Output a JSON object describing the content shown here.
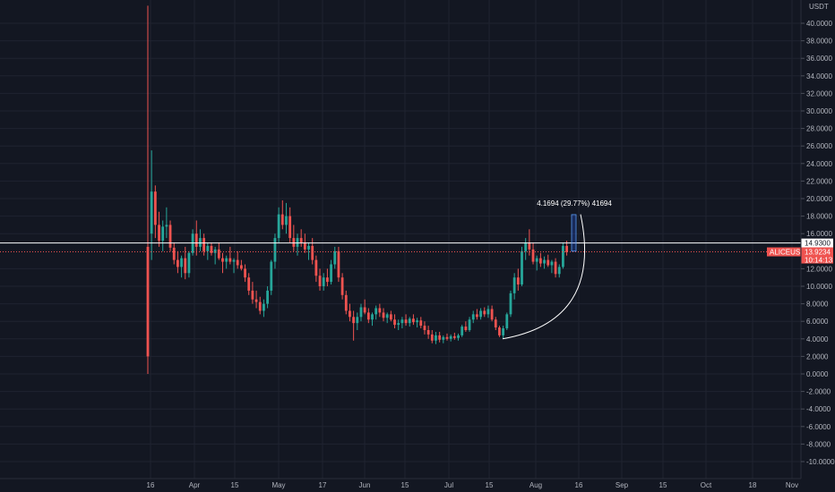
{
  "chart_data": {
    "type": "candlestick",
    "symbol": "ALICEUSDT",
    "currency": "USDT",
    "ylim": [
      -11,
      43
    ],
    "y_ticks": [
      -10,
      -8,
      -6,
      -4,
      -2,
      0,
      2,
      4,
      6,
      8,
      10,
      12,
      16,
      18,
      20,
      22,
      24,
      26,
      28,
      30,
      32,
      34,
      36,
      38,
      40
    ],
    "y_tick_labels": [
      "-10.0000",
      "-8.0000",
      "-6.0000",
      "-4.0000",
      "-2.0000",
      "0.0000",
      "2.0000",
      "4.0000",
      "6.0000",
      "8.0000",
      "10.0000",
      "12.0000",
      "16.0000",
      "18.0000",
      "20.0000",
      "22.0000",
      "24.0000",
      "26.0000",
      "28.0000",
      "30.0000",
      "32.0000",
      "34.0000",
      "36.0000",
      "38.0000",
      "40.0000"
    ],
    "x_labels": [
      "16",
      "Apr",
      "15",
      "May",
      "17",
      "Jun",
      "15",
      "Jul",
      "15",
      "Aug",
      "16",
      "Sep",
      "15",
      "Oct",
      "18",
      "Nov"
    ],
    "horizontal_line_value": 14.93,
    "horizontal_line_label": "14.9300",
    "last_price": 13.9234,
    "last_price_label": "13.9234",
    "countdown": "10:14:13",
    "measure_label": "4.1694 (29.77%) 41694",
    "measure_range": [
      14.0,
      18.17
    ],
    "curve_start_value": 4.0,
    "curve_end_value": 18.2,
    "colors": {
      "up": "#26a69a",
      "down": "#ef5350",
      "bg": "#131722",
      "grid": "#1f2330",
      "line": "#ffffff"
    },
    "candles": [
      {
        "o": 14.5,
        "h": 42,
        "l": 0,
        "c": 2.0
      },
      {
        "o": 16.0,
        "h": 25.5,
        "l": 13.0,
        "c": 20.8
      },
      {
        "o": 20.8,
        "h": 21.5,
        "l": 15.5,
        "c": 17.0
      },
      {
        "o": 17.0,
        "h": 18.5,
        "l": 14.5,
        "c": 15.2
      },
      {
        "o": 15.2,
        "h": 17.5,
        "l": 14.0,
        "c": 16.8
      },
      {
        "o": 16.8,
        "h": 19.0,
        "l": 15.5,
        "c": 17.0
      },
      {
        "o": 17.0,
        "h": 17.5,
        "l": 14.0,
        "c": 14.4
      },
      {
        "o": 14.4,
        "h": 15.0,
        "l": 12.5,
        "c": 13.0
      },
      {
        "o": 13.0,
        "h": 14.0,
        "l": 11.5,
        "c": 12.2
      },
      {
        "o": 12.2,
        "h": 13.5,
        "l": 11.0,
        "c": 13.2
      },
      {
        "o": 13.2,
        "h": 14.5,
        "l": 10.8,
        "c": 11.5
      },
      {
        "o": 11.5,
        "h": 14.0,
        "l": 11.0,
        "c": 13.8
      },
      {
        "o": 13.8,
        "h": 16.5,
        "l": 13.5,
        "c": 16.0
      },
      {
        "o": 16.0,
        "h": 17.5,
        "l": 13.5,
        "c": 14.5
      },
      {
        "o": 14.5,
        "h": 16.5,
        "l": 14.0,
        "c": 15.5
      },
      {
        "o": 15.5,
        "h": 16.0,
        "l": 13.5,
        "c": 14.0
      },
      {
        "o": 14.0,
        "h": 15.0,
        "l": 13.0,
        "c": 14.6
      },
      {
        "o": 14.6,
        "h": 15.0,
        "l": 13.5,
        "c": 13.8
      },
      {
        "o": 13.8,
        "h": 14.5,
        "l": 12.5,
        "c": 14.2
      },
      {
        "o": 14.2,
        "h": 15.0,
        "l": 13.0,
        "c": 13.2
      },
      {
        "o": 13.2,
        "h": 13.8,
        "l": 11.5,
        "c": 12.8
      },
      {
        "o": 12.8,
        "h": 13.5,
        "l": 12.0,
        "c": 13.2
      },
      {
        "o": 13.2,
        "h": 14.5,
        "l": 12.5,
        "c": 12.8
      },
      {
        "o": 12.8,
        "h": 13.2,
        "l": 11.5,
        "c": 13.0
      },
      {
        "o": 13.0,
        "h": 14.0,
        "l": 12.0,
        "c": 12.4
      },
      {
        "o": 12.4,
        "h": 13.0,
        "l": 11.8,
        "c": 12.0
      },
      {
        "o": 12.0,
        "h": 12.5,
        "l": 10.5,
        "c": 11.0
      },
      {
        "o": 11.0,
        "h": 11.5,
        "l": 9.0,
        "c": 9.5
      },
      {
        "o": 9.5,
        "h": 10.5,
        "l": 8.0,
        "c": 8.5
      },
      {
        "o": 8.5,
        "h": 9.5,
        "l": 7.5,
        "c": 8.2
      },
      {
        "o": 8.2,
        "h": 8.8,
        "l": 6.8,
        "c": 7.2
      },
      {
        "o": 7.2,
        "h": 8.5,
        "l": 6.5,
        "c": 8.0
      },
      {
        "o": 8.0,
        "h": 10.0,
        "l": 7.5,
        "c": 9.5
      },
      {
        "o": 9.5,
        "h": 13.0,
        "l": 9.0,
        "c": 12.8
      },
      {
        "o": 12.8,
        "h": 16.0,
        "l": 12.0,
        "c": 15.5
      },
      {
        "o": 15.5,
        "h": 19.0,
        "l": 15.0,
        "c": 18.2
      },
      {
        "o": 18.2,
        "h": 19.8,
        "l": 16.5,
        "c": 17.0
      },
      {
        "o": 17.0,
        "h": 19.5,
        "l": 16.0,
        "c": 18.0
      },
      {
        "o": 18.0,
        "h": 19.0,
        "l": 15.0,
        "c": 15.5
      },
      {
        "o": 15.5,
        "h": 17.0,
        "l": 14.0,
        "c": 14.5
      },
      {
        "o": 14.5,
        "h": 16.0,
        "l": 13.5,
        "c": 15.5
      },
      {
        "o": 15.5,
        "h": 16.5,
        "l": 14.5,
        "c": 15.0
      },
      {
        "o": 15.0,
        "h": 16.0,
        "l": 13.8,
        "c": 14.2
      },
      {
        "o": 14.2,
        "h": 15.0,
        "l": 13.0,
        "c": 14.6
      },
      {
        "o": 14.6,
        "h": 15.5,
        "l": 12.5,
        "c": 13.0
      },
      {
        "o": 13.0,
        "h": 13.5,
        "l": 10.5,
        "c": 11.2
      },
      {
        "o": 11.2,
        "h": 12.0,
        "l": 9.5,
        "c": 10.0
      },
      {
        "o": 10.0,
        "h": 11.5,
        "l": 9.5,
        "c": 11.0
      },
      {
        "o": 11.0,
        "h": 12.0,
        "l": 10.0,
        "c": 10.5
      },
      {
        "o": 10.5,
        "h": 13.0,
        "l": 10.2,
        "c": 12.5
      },
      {
        "o": 12.5,
        "h": 14.5,
        "l": 12.0,
        "c": 14.0
      },
      {
        "o": 14.0,
        "h": 14.5,
        "l": 10.5,
        "c": 11.0
      },
      {
        "o": 11.0,
        "h": 11.5,
        "l": 8.5,
        "c": 9.0
      },
      {
        "o": 9.0,
        "h": 9.5,
        "l": 6.8,
        "c": 7.2
      },
      {
        "o": 7.2,
        "h": 8.0,
        "l": 6.0,
        "c": 6.5
      },
      {
        "o": 6.5,
        "h": 7.2,
        "l": 3.8,
        "c": 5.8
      },
      {
        "o": 5.8,
        "h": 7.0,
        "l": 5.0,
        "c": 6.5
      },
      {
        "o": 6.5,
        "h": 8.0,
        "l": 6.0,
        "c": 7.6
      },
      {
        "o": 7.6,
        "h": 8.5,
        "l": 6.8,
        "c": 7.0
      },
      {
        "o": 7.0,
        "h": 7.5,
        "l": 5.8,
        "c": 6.2
      },
      {
        "o": 6.2,
        "h": 7.0,
        "l": 5.5,
        "c": 6.8
      },
      {
        "o": 6.8,
        "h": 7.8,
        "l": 6.2,
        "c": 7.5
      },
      {
        "o": 7.5,
        "h": 8.0,
        "l": 6.5,
        "c": 7.0
      },
      {
        "o": 7.0,
        "h": 7.5,
        "l": 6.0,
        "c": 6.4
      },
      {
        "o": 6.4,
        "h": 7.0,
        "l": 5.8,
        "c": 6.8
      },
      {
        "o": 6.8,
        "h": 7.2,
        "l": 6.0,
        "c": 6.2
      },
      {
        "o": 6.2,
        "h": 6.8,
        "l": 5.2,
        "c": 5.6
      },
      {
        "o": 5.6,
        "h": 6.2,
        "l": 5.0,
        "c": 5.8
      },
      {
        "o": 5.8,
        "h": 6.5,
        "l": 5.2,
        "c": 6.2
      },
      {
        "o": 6.2,
        "h": 6.8,
        "l": 5.5,
        "c": 5.8
      },
      {
        "o": 5.8,
        "h": 6.5,
        "l": 5.4,
        "c": 6.3
      },
      {
        "o": 6.3,
        "h": 6.8,
        "l": 5.6,
        "c": 5.9
      },
      {
        "o": 5.9,
        "h": 6.4,
        "l": 5.3,
        "c": 6.1
      },
      {
        "o": 6.1,
        "h": 6.5,
        "l": 5.2,
        "c": 5.5
      },
      {
        "o": 5.5,
        "h": 6.0,
        "l": 4.5,
        "c": 5.0
      },
      {
        "o": 5.0,
        "h": 5.5,
        "l": 4.0,
        "c": 4.5
      },
      {
        "o": 4.5,
        "h": 5.0,
        "l": 3.5,
        "c": 3.8
      },
      {
        "o": 3.8,
        "h": 4.8,
        "l": 3.4,
        "c": 4.4
      },
      {
        "o": 4.4,
        "h": 4.8,
        "l": 3.6,
        "c": 3.9
      },
      {
        "o": 3.9,
        "h": 4.4,
        "l": 3.5,
        "c": 4.2
      },
      {
        "o": 4.2,
        "h": 4.6,
        "l": 3.8,
        "c": 4.0
      },
      {
        "o": 4.0,
        "h": 4.5,
        "l": 3.7,
        "c": 4.3
      },
      {
        "o": 4.3,
        "h": 4.7,
        "l": 3.9,
        "c": 4.1
      },
      {
        "o": 4.1,
        "h": 4.6,
        "l": 3.8,
        "c": 4.4
      },
      {
        "o": 4.4,
        "h": 5.6,
        "l": 4.2,
        "c": 5.4
      },
      {
        "o": 5.4,
        "h": 6.0,
        "l": 4.8,
        "c": 5.0
      },
      {
        "o": 5.0,
        "h": 6.5,
        "l": 4.8,
        "c": 6.2
      },
      {
        "o": 6.2,
        "h": 7.2,
        "l": 5.8,
        "c": 6.8
      },
      {
        "o": 6.8,
        "h": 7.4,
        "l": 6.2,
        "c": 6.5
      },
      {
        "o": 6.5,
        "h": 7.5,
        "l": 6.2,
        "c": 7.2
      },
      {
        "o": 7.2,
        "h": 7.6,
        "l": 6.5,
        "c": 6.8
      },
      {
        "o": 6.8,
        "h": 7.8,
        "l": 6.4,
        "c": 7.4
      },
      {
        "o": 7.4,
        "h": 7.8,
        "l": 6.0,
        "c": 6.2
      },
      {
        "o": 6.2,
        "h": 6.5,
        "l": 5.0,
        "c": 5.3
      },
      {
        "o": 5.3,
        "h": 5.5,
        "l": 4.2,
        "c": 4.4
      },
      {
        "o": 4.4,
        "h": 5.5,
        "l": 4.0,
        "c": 5.2
      },
      {
        "o": 5.2,
        "h": 7.0,
        "l": 5.0,
        "c": 6.8
      },
      {
        "o": 6.8,
        "h": 9.5,
        "l": 6.5,
        "c": 9.2
      },
      {
        "o": 9.2,
        "h": 11.5,
        "l": 8.5,
        "c": 11.0
      },
      {
        "o": 11.0,
        "h": 12.0,
        "l": 9.5,
        "c": 10.2
      },
      {
        "o": 10.2,
        "h": 14.5,
        "l": 10.0,
        "c": 14.0
      },
      {
        "o": 14.0,
        "h": 15.5,
        "l": 13.0,
        "c": 15.0
      },
      {
        "o": 15.0,
        "h": 16.5,
        "l": 13.5,
        "c": 14.2
      },
      {
        "o": 14.2,
        "h": 15.0,
        "l": 12.5,
        "c": 12.8
      },
      {
        "o": 12.8,
        "h": 13.5,
        "l": 11.8,
        "c": 13.2
      },
      {
        "o": 13.2,
        "h": 13.8,
        "l": 12.2,
        "c": 12.6
      },
      {
        "o": 12.6,
        "h": 13.4,
        "l": 12.0,
        "c": 13.0
      },
      {
        "o": 13.0,
        "h": 13.6,
        "l": 12.2,
        "c": 12.4
      },
      {
        "o": 12.4,
        "h": 13.0,
        "l": 11.5,
        "c": 12.8
      },
      {
        "o": 12.8,
        "h": 13.2,
        "l": 11.0,
        "c": 11.4
      },
      {
        "o": 11.4,
        "h": 12.5,
        "l": 11.0,
        "c": 12.2
      },
      {
        "o": 12.2,
        "h": 15.0,
        "l": 12.0,
        "c": 14.6
      },
      {
        "o": 14.6,
        "h": 15.2,
        "l": 13.5,
        "c": 13.9
      }
    ]
  }
}
